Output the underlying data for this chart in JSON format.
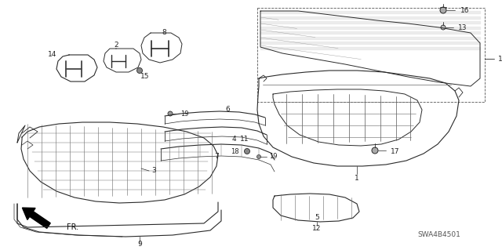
{
  "bg_color": "#ffffff",
  "line_color": "#2a2a2a",
  "gray_fill": "#888888",
  "light_gray": "#cccccc",
  "diagram_id": "SWA4B4501",
  "fig_width": 6.4,
  "fig_height": 3.19,
  "dpi": 100
}
